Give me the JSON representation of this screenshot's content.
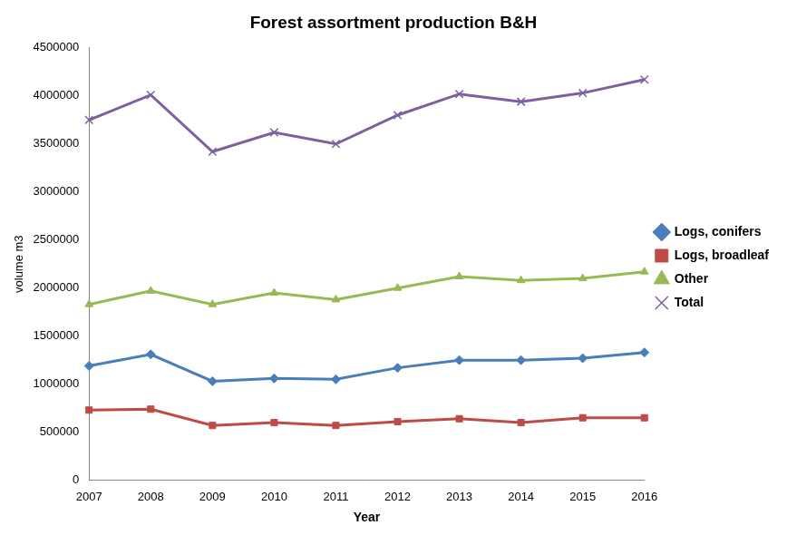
{
  "chart_data": {
    "type": "line",
    "title": "Forest assortment production B&H",
    "x_label": "Year",
    "y_label": "volume m3",
    "categories": [
      "2007",
      "2008",
      "2009",
      "2010",
      "2011",
      "2012",
      "2013",
      "2014",
      "2015",
      "2016"
    ],
    "series": [
      {
        "name": "Logs, conifers",
        "color": "#4a7ebb",
        "marker": "diamond",
        "line_style": "solid",
        "values": [
          1190000,
          1310000,
          1030000,
          1060000,
          1050000,
          1170000,
          1250000,
          1250000,
          1270000,
          1330000
        ]
      },
      {
        "name": "Logs, broadleaf",
        "color": "#be4b48",
        "marker": "square",
        "line_style": "solid",
        "values": [
          730000,
          740000,
          570000,
          600000,
          570000,
          610000,
          640000,
          600000,
          650000,
          650000
        ]
      },
      {
        "name": "Other",
        "color": "#98b954",
        "marker": "triangle",
        "line_style": "solid",
        "values": [
          1830000,
          1970000,
          1830000,
          1950000,
          1880000,
          2000000,
          2120000,
          2080000,
          2100000,
          2170000
        ]
      },
      {
        "name": "Total",
        "color": "#7d60a0",
        "marker": "x",
        "line_style": "solid",
        "values": [
          3750000,
          4010000,
          3420000,
          3620000,
          3500000,
          3800000,
          4020000,
          3940000,
          4030000,
          4170000
        ]
      }
    ],
    "ylim": [
      0,
      4500000
    ],
    "yticks": [
      0,
      500000,
      1000000,
      1500000,
      2000000,
      2500000,
      3000000,
      3500000,
      4000000,
      4500000
    ],
    "grid": false,
    "legend": "right"
  }
}
